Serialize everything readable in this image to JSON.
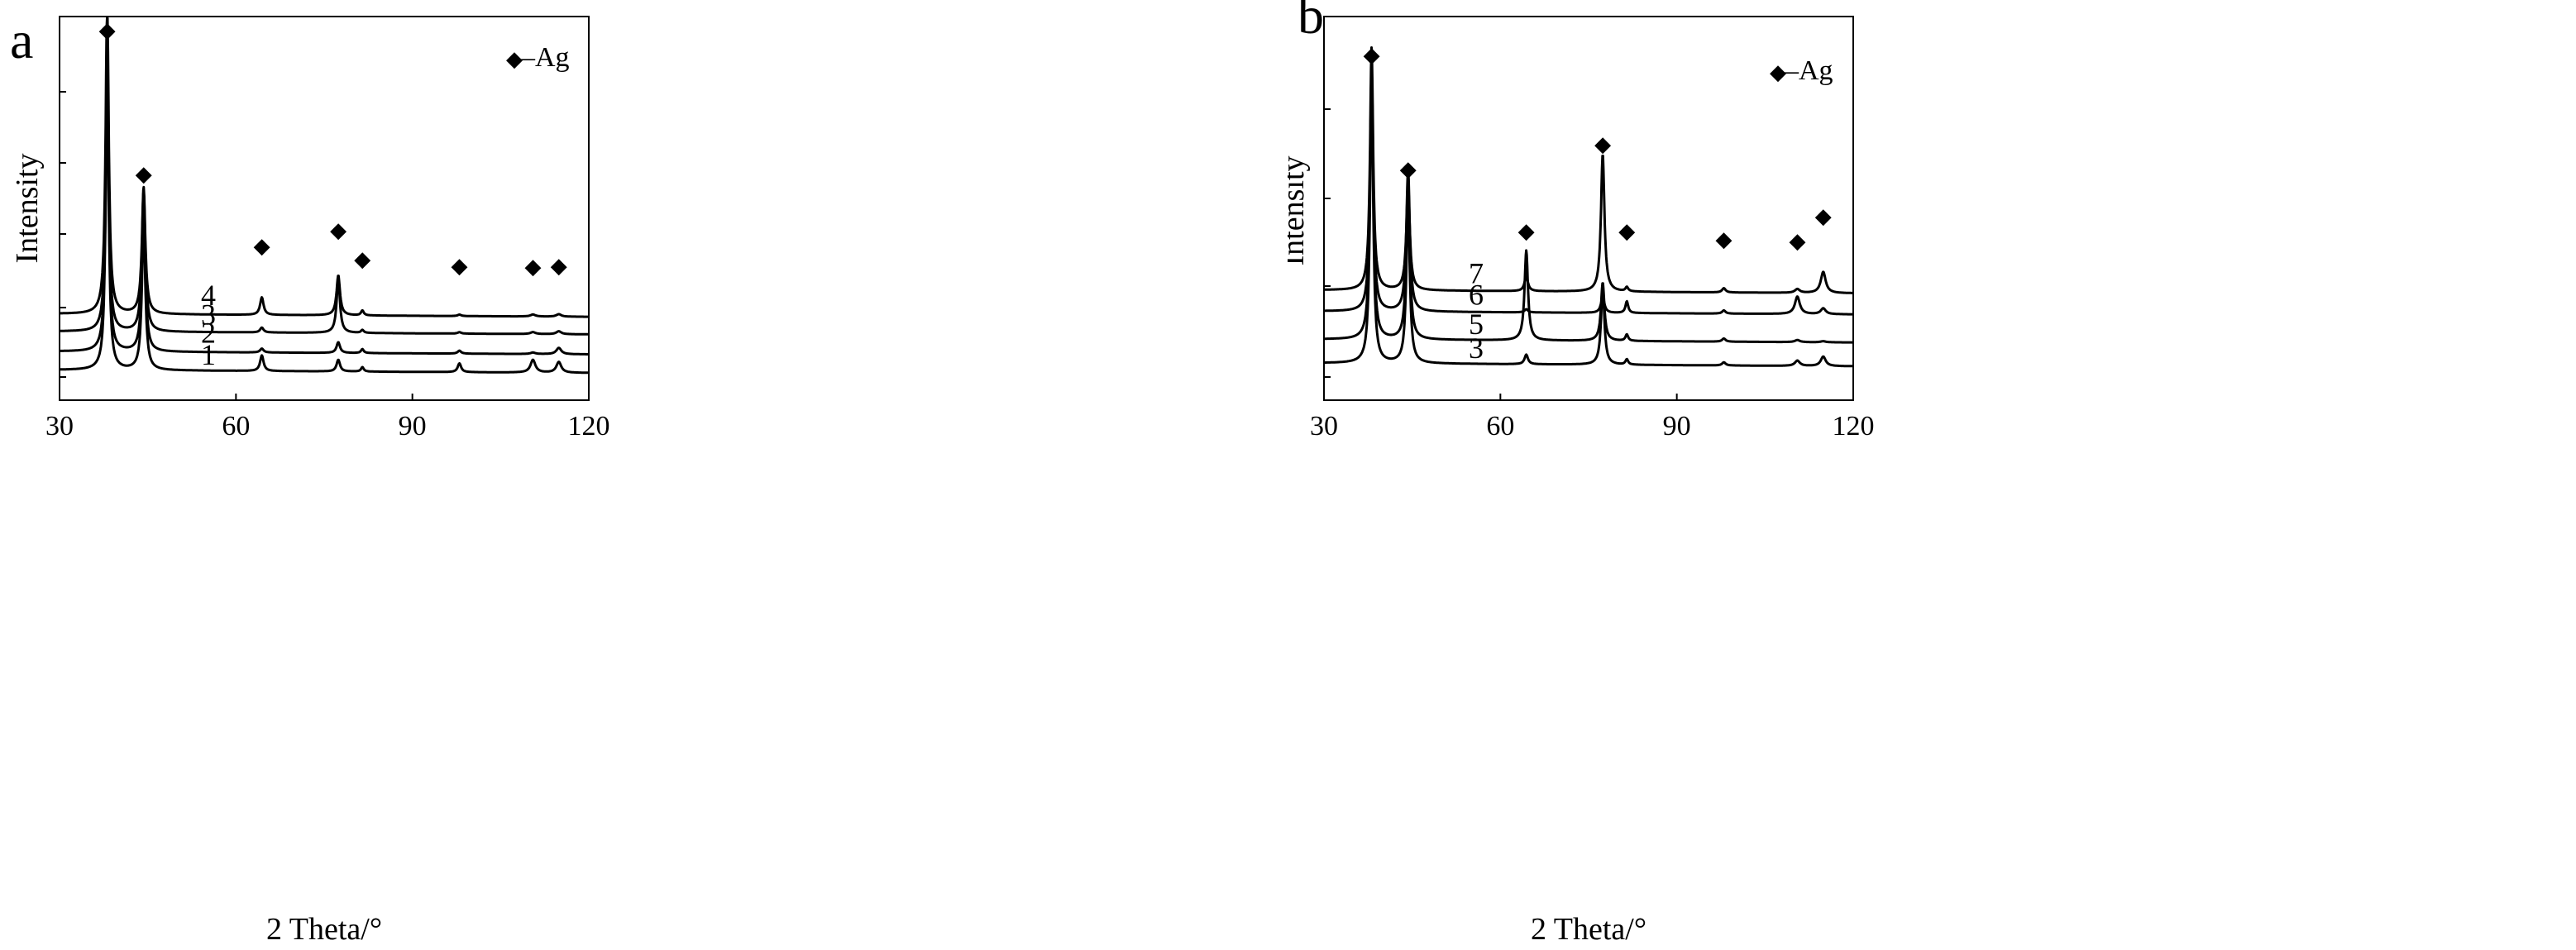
{
  "chart_data": [
    {
      "type": "line",
      "panel": "a",
      "xlabel": "2 Theta/°",
      "ylabel": "Intensity",
      "xlim": [
        30,
        120
      ],
      "xticks": [
        "30",
        "60",
        "90",
        "120"
      ],
      "legend": {
        "marker": "◆",
        "text": "–Ag",
        "placement": "top-right"
      },
      "peak_positions": [
        38.1,
        44.3,
        64.4,
        77.4,
        81.5,
        98.0,
        110.5,
        114.9
      ],
      "series": [
        {
          "name": "1",
          "baseline": 0.0,
          "peaks": [
            5.8,
            3.0,
            0.32,
            0.24,
            0.09,
            0.18,
            0.26,
            0.22
          ]
        },
        {
          "name": "2",
          "baseline": 0.38,
          "peaks": [
            5.5,
            2.95,
            0.08,
            0.22,
            0.08,
            0.06,
            0.03,
            0.13
          ]
        },
        {
          "name": "3",
          "baseline": 0.79,
          "peaks": [
            5.3,
            2.9,
            0.1,
            1.08,
            0.06,
            0.03,
            0.04,
            0.06
          ]
        },
        {
          "name": "4",
          "baseline": 1.15,
          "peaks": [
            6.4,
            2.6,
            0.36,
            0.82,
            0.1,
            0.03,
            0.04,
            0.05
          ]
        }
      ]
    },
    {
      "type": "line",
      "panel": "b",
      "xlabel": "2 Theta/°",
      "ylabel": "Intensity",
      "xlim": [
        30,
        120
      ],
      "xticks": [
        "30",
        "60",
        "90",
        "120"
      ],
      "legend": {
        "marker": "◆",
        "text": "–Ag",
        "placement": "top-right"
      },
      "peak_positions": [
        38.1,
        44.3,
        64.4,
        77.4,
        81.5,
        98.0,
        110.5,
        114.9
      ],
      "series": [
        {
          "name": "3",
          "baseline": 0.0,
          "peaks": [
            5.4,
            3.0,
            0.18,
            1.45,
            0.1,
            0.06,
            0.1,
            0.18
          ]
        },
        {
          "name": "5",
          "baseline": 0.45,
          "peaks": [
            5.2,
            3.0,
            1.7,
            1.1,
            0.12,
            0.06,
            0.04,
            0.02
          ]
        },
        {
          "name": "6",
          "baseline": 0.98,
          "peaks": [
            4.6,
            2.7,
            0.06,
            0.3,
            0.22,
            0.06,
            0.33,
            0.11
          ]
        },
        {
          "name": "7",
          "baseline": 1.38,
          "peaks": [
            4.6,
            2.0,
            0.28,
            2.6,
            0.08,
            0.08,
            0.07,
            0.4
          ]
        }
      ]
    }
  ]
}
